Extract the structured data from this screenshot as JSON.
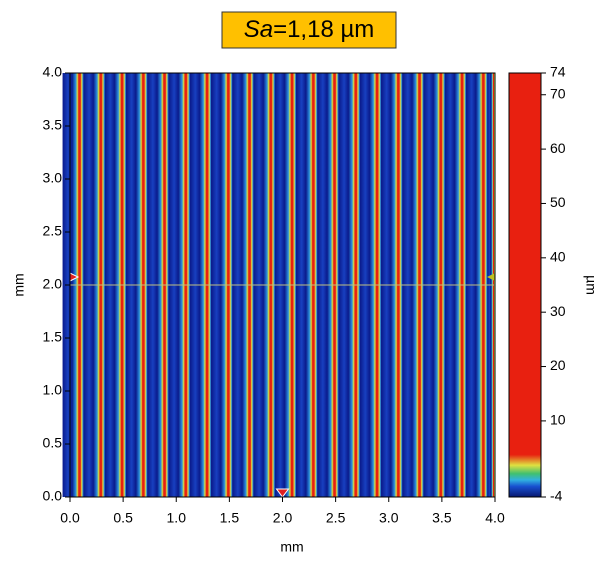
{
  "chart_data": {
    "type": "heatmap",
    "title": {
      "italic": "Sa",
      "rest": "=1,18 µm"
    },
    "xlabel": "mm",
    "ylabel": "mm",
    "xlim": [
      0,
      4
    ],
    "ylim": [
      0,
      4
    ],
    "xticks": [
      {
        "value": 0,
        "label": "0.0"
      },
      {
        "value": 0.5,
        "label": "0.5"
      },
      {
        "value": 1,
        "label": "1.0"
      },
      {
        "value": 1.5,
        "label": "1.5"
      },
      {
        "value": 2,
        "label": "2.0"
      },
      {
        "value": 2.5,
        "label": "2.5"
      },
      {
        "value": 3,
        "label": "3.0"
      },
      {
        "value": 3.5,
        "label": "3.5"
      },
      {
        "value": 4,
        "label": "4.0"
      }
    ],
    "yticks": [
      {
        "value": 0,
        "label": "0.0"
      },
      {
        "value": 0.5,
        "label": "0.5"
      },
      {
        "value": 1,
        "label": "1.0"
      },
      {
        "value": 1.5,
        "label": "1.5"
      },
      {
        "value": 2,
        "label": "2.0"
      },
      {
        "value": 2.5,
        "label": "2.5"
      },
      {
        "value": 3,
        "label": "3.0"
      },
      {
        "value": 3.5,
        "label": "3.5"
      },
      {
        "value": 4,
        "label": "4.0"
      }
    ],
    "colorbar": {
      "label": "µm",
      "lim": [
        -4,
        74
      ],
      "ticks": [
        -4,
        10,
        20,
        30,
        40,
        50,
        60,
        70,
        74
      ]
    }
  }
}
